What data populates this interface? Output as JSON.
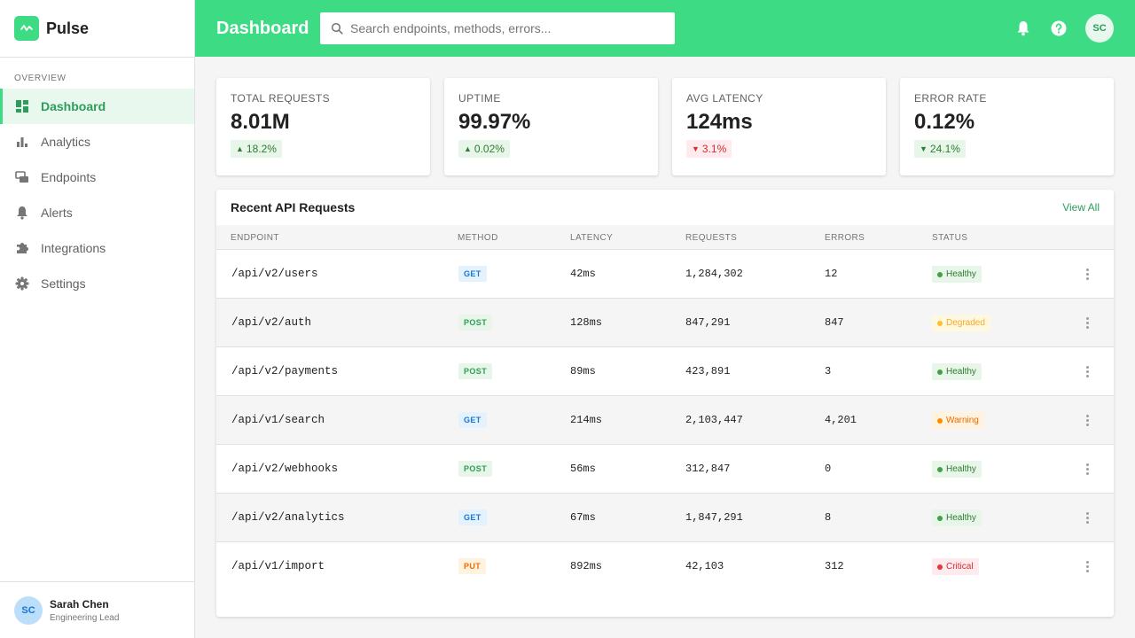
{
  "brand": {
    "name": "Pulse"
  },
  "sidebar": {
    "section": "OVERVIEW",
    "items": [
      {
        "label": "Dashboard",
        "icon": "grid-icon"
      },
      {
        "label": "Analytics",
        "icon": "bar-chart-icon"
      },
      {
        "label": "Endpoints",
        "icon": "endpoints-icon"
      },
      {
        "label": "Alerts",
        "icon": "bell-icon"
      },
      {
        "label": "Integrations",
        "icon": "puzzle-icon"
      },
      {
        "label": "Settings",
        "icon": "gear-icon"
      }
    ],
    "active": "Dashboard"
  },
  "user": {
    "initials": "SC",
    "name": "Sarah Chen",
    "role": "Engineering Lead"
  },
  "header": {
    "title": "Dashboard",
    "search_placeholder": "Search endpoints, methods, errors...",
    "avatar_initials": "SC"
  },
  "stats": [
    {
      "label": "TOTAL REQUESTS",
      "value": "8.01M",
      "change": "18.2%",
      "direction": "up",
      "tone": "good"
    },
    {
      "label": "UPTIME",
      "value": "99.97%",
      "change": "0.02%",
      "direction": "up",
      "tone": "good"
    },
    {
      "label": "AVG LATENCY",
      "value": "124ms",
      "change": "3.1%",
      "direction": "down",
      "tone": "bad"
    },
    {
      "label": "ERROR RATE",
      "value": "0.12%",
      "change": "24.1%",
      "direction": "down",
      "tone": "good"
    }
  ],
  "table": {
    "title": "Recent API Requests",
    "view_all": "View All",
    "columns": [
      "ENDPOINT",
      "METHOD",
      "LATENCY",
      "REQUESTS",
      "ERRORS",
      "STATUS"
    ],
    "rows": [
      {
        "endpoint": "/api/v2/users",
        "method": "GET",
        "latency": "42ms",
        "requests": "1,284,302",
        "errors": "12",
        "status": "Healthy"
      },
      {
        "endpoint": "/api/v2/auth",
        "method": "POST",
        "latency": "128ms",
        "requests": "847,291",
        "errors": "847",
        "status": "Degraded"
      },
      {
        "endpoint": "/api/v2/payments",
        "method": "POST",
        "latency": "89ms",
        "requests": "423,891",
        "errors": "3",
        "status": "Healthy"
      },
      {
        "endpoint": "/api/v1/search",
        "method": "GET",
        "latency": "214ms",
        "requests": "2,103,447",
        "errors": "4,201",
        "status": "Warning"
      },
      {
        "endpoint": "/api/v2/webhooks",
        "method": "POST",
        "latency": "56ms",
        "requests": "312,847",
        "errors": "0",
        "status": "Healthy"
      },
      {
        "endpoint": "/api/v2/analytics",
        "method": "GET",
        "latency": "67ms",
        "requests": "1,847,291",
        "errors": "8",
        "status": "Healthy"
      },
      {
        "endpoint": "/api/v1/import",
        "method": "PUT",
        "latency": "892ms",
        "requests": "42,103",
        "errors": "312",
        "status": "Critical"
      }
    ]
  },
  "colors": {
    "accent": "#3ddc84",
    "accent_dark": "#2e9d5a",
    "background": "#f5f5f5"
  }
}
